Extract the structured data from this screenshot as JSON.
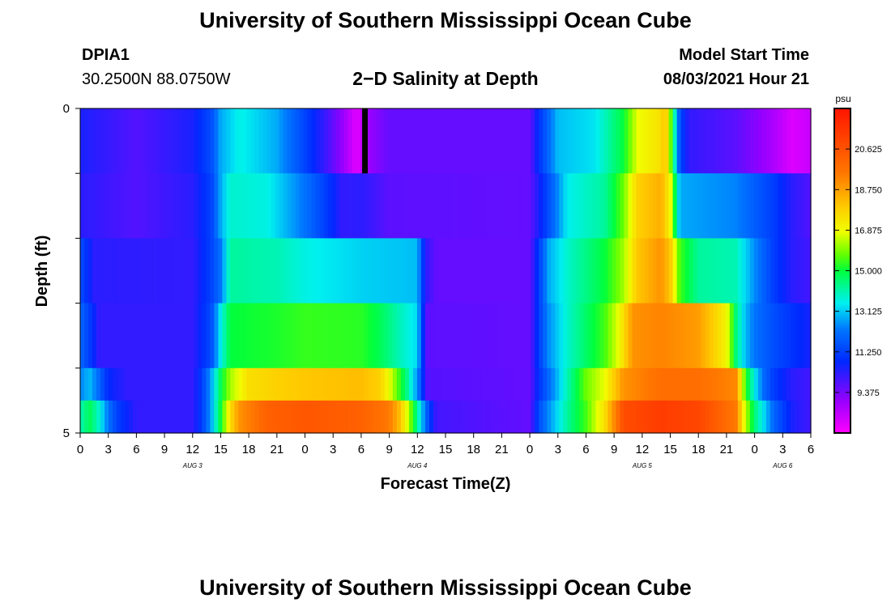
{
  "header": {
    "title": "University of Southern Mississippi Ocean Cube",
    "station_id": "DPIA1",
    "station_coords": "30.2500N  88.0750W",
    "subtitle": "2−D Salinity at Depth",
    "model_start_label": "Model Start Time",
    "model_start_value": "08/03/2021 Hour 21"
  },
  "footer": {
    "title": "University of Southern Mississippi Ocean Cube"
  },
  "chart_data": {
    "type": "heatmap",
    "xlabel": "Forecast Time(Z)",
    "ylabel": "Depth (ft)",
    "ylim": [
      0,
      5
    ],
    "y_tick_labels": [
      "0",
      "5"
    ],
    "x_tick_labels": [
      "0",
      "3",
      "6",
      "9",
      "12",
      "15",
      "18",
      "21",
      "0",
      "3",
      "6",
      "9",
      "12",
      "15",
      "18",
      "21",
      "0",
      "3",
      "6",
      "9",
      "12",
      "15",
      "18",
      "21",
      "0",
      "3",
      "6"
    ],
    "x_hours_range": [
      0,
      78
    ],
    "date_labels": [
      {
        "text": "AUG 3",
        "hour": 12
      },
      {
        "text": "AUG 4",
        "hour": 36
      },
      {
        "text": "AUG 5",
        "hour": 60
      },
      {
        "text": "AUG 6",
        "hour": 75
      }
    ],
    "colorbar": {
      "unit": "psu",
      "min": 7.5,
      "max": 22.5,
      "tick_labels": [
        "20.625",
        "18.750",
        "16.875",
        "15.000",
        "13.125",
        "11.250",
        "9.375"
      ],
      "tick_values": [
        20.625,
        18.75,
        16.875,
        15.0,
        13.125,
        11.25,
        9.375
      ]
    },
    "depth_layers": [
      0.5,
      1.5,
      2.5,
      3.5,
      4.5,
      5.0
    ],
    "missing_marker": {
      "hour_start": 30.1,
      "hour_end": 30.7,
      "layer": 0
    },
    "layers": [
      {
        "depth": 0.5,
        "keyframes": [
          [
            0,
            10.5
          ],
          [
            6,
            9.8
          ],
          [
            12,
            10.5
          ],
          [
            14,
            11.5
          ],
          [
            15,
            12.8
          ],
          [
            17,
            13.6
          ],
          [
            21,
            12.8
          ],
          [
            24,
            11.3
          ],
          [
            26,
            10.2
          ],
          [
            28,
            9.0
          ],
          [
            29.5,
            7.9
          ],
          [
            31,
            9.0
          ],
          [
            33,
            9.6
          ],
          [
            48,
            9.6
          ],
          [
            49,
            11.0
          ],
          [
            51,
            13.0
          ],
          [
            55,
            13.4
          ],
          [
            58,
            15.0
          ],
          [
            59.5,
            16.8
          ],
          [
            62,
            17.5
          ],
          [
            62.5,
            18.2
          ],
          [
            63,
            16.0
          ],
          [
            63.5,
            13.8
          ],
          [
            64,
            11.5
          ],
          [
            65,
            10.2
          ],
          [
            70,
            9.7
          ],
          [
            74,
            8.7
          ],
          [
            76,
            8.0
          ],
          [
            78,
            8.3
          ]
        ]
      },
      {
        "depth": 1.5,
        "keyframes": [
          [
            0,
            10.3
          ],
          [
            6,
            9.8
          ],
          [
            12,
            10.3
          ],
          [
            14,
            11.3
          ],
          [
            15,
            12.8
          ],
          [
            16,
            13.8
          ],
          [
            20,
            13.6
          ],
          [
            24,
            12.2
          ],
          [
            26,
            11.3
          ],
          [
            28,
            10.2
          ],
          [
            30,
            10.3
          ],
          [
            33,
            9.7
          ],
          [
            48,
            9.6
          ],
          [
            50,
            11.5
          ],
          [
            52,
            13.5
          ],
          [
            56,
            14.2
          ],
          [
            58,
            15.8
          ],
          [
            59.5,
            17.8
          ],
          [
            62,
            18.5
          ],
          [
            63,
            17.0
          ],
          [
            64,
            12.8
          ],
          [
            70,
            12.4
          ],
          [
            74,
            11.2
          ],
          [
            76,
            10.3
          ],
          [
            78,
            9.8
          ]
        ]
      },
      {
        "depth": 2.5,
        "keyframes": [
          [
            0,
            11.5
          ],
          [
            1.5,
            10.3
          ],
          [
            12,
            10.2
          ],
          [
            14,
            11.3
          ],
          [
            15,
            12.2
          ],
          [
            16,
            14.2
          ],
          [
            21,
            14.0
          ],
          [
            24,
            13.6
          ],
          [
            30,
            13.2
          ],
          [
            36,
            13.0
          ],
          [
            36.5,
            11.3
          ],
          [
            37,
            10.2
          ],
          [
            38,
            9.6
          ],
          [
            48,
            9.6
          ],
          [
            49,
            11.2
          ],
          [
            50,
            12.8
          ],
          [
            52,
            13.8
          ],
          [
            56,
            15.0
          ],
          [
            58,
            16.2
          ],
          [
            59.5,
            18.0
          ],
          [
            62,
            19.0
          ],
          [
            63,
            18.0
          ],
          [
            64,
            15.5
          ],
          [
            66,
            14.2
          ],
          [
            70,
            14.0
          ],
          [
            72,
            12.5
          ],
          [
            74,
            11.2
          ],
          [
            76,
            10.3
          ],
          [
            78,
            10.0
          ]
        ]
      },
      {
        "depth": 3.5,
        "keyframes": [
          [
            0,
            12.0
          ],
          [
            1,
            11.2
          ],
          [
            2,
            10.2
          ],
          [
            12,
            10.2
          ],
          [
            14,
            11.5
          ],
          [
            15,
            13.5
          ],
          [
            16,
            15.0
          ],
          [
            21,
            15.2
          ],
          [
            24,
            15.4
          ],
          [
            30,
            15.3
          ],
          [
            32,
            14.8
          ],
          [
            34,
            14.0
          ],
          [
            36,
            13.3
          ],
          [
            36.5,
            11.2
          ],
          [
            37,
            9.7
          ],
          [
            48,
            9.6
          ],
          [
            49,
            11.2
          ],
          [
            50,
            12.5
          ],
          [
            52,
            13.8
          ],
          [
            56,
            15.5
          ],
          [
            57.5,
            16.8
          ],
          [
            59,
            19.0
          ],
          [
            62,
            19.3
          ],
          [
            66,
            18.8
          ],
          [
            69,
            17.0
          ],
          [
            70,
            14.5
          ],
          [
            71,
            13.0
          ],
          [
            72,
            12.2
          ],
          [
            74,
            11.5
          ],
          [
            76,
            11.0
          ],
          [
            78,
            10.5
          ]
        ]
      },
      {
        "depth": 4.5,
        "keyframes": [
          [
            0,
            12.4
          ],
          [
            1,
            13.0
          ],
          [
            2,
            12.0
          ],
          [
            3,
            10.8
          ],
          [
            5,
            10.2
          ],
          [
            12,
            10.2
          ],
          [
            13,
            11.2
          ],
          [
            14,
            12.8
          ],
          [
            15,
            14.8
          ],
          [
            16,
            16.2
          ],
          [
            18,
            17.5
          ],
          [
            21,
            17.8
          ],
          [
            24,
            18.0
          ],
          [
            30,
            18.2
          ],
          [
            32,
            17.8
          ],
          [
            33,
            16.8
          ],
          [
            34,
            15.5
          ],
          [
            35,
            14.2
          ],
          [
            36,
            12.5
          ],
          [
            36.5,
            11.2
          ],
          [
            37,
            9.8
          ],
          [
            48,
            9.6
          ],
          [
            49,
            11.0
          ],
          [
            50,
            12.0
          ],
          [
            52,
            14.0
          ],
          [
            54,
            15.8
          ],
          [
            56,
            16.8
          ],
          [
            58,
            19.0
          ],
          [
            62,
            19.8
          ],
          [
            66,
            19.8
          ],
          [
            70,
            19.2
          ],
          [
            71,
            15.5
          ],
          [
            72,
            13.5
          ],
          [
            73,
            12.0
          ],
          [
            74,
            11.2
          ],
          [
            76,
            10.3
          ],
          [
            78,
            10.0
          ]
        ]
      },
      {
        "depth": 5.0,
        "keyframes": [
          [
            0,
            14.0
          ],
          [
            1,
            14.8
          ],
          [
            2,
            13.8
          ],
          [
            3,
            12.2
          ],
          [
            4,
            11.2
          ],
          [
            6,
            10.2
          ],
          [
            12,
            10.2
          ],
          [
            13,
            11.2
          ],
          [
            14,
            12.8
          ],
          [
            15,
            15.0
          ],
          [
            16,
            17.5
          ],
          [
            17,
            19.0
          ],
          [
            20,
            20.2
          ],
          [
            24,
            20.5
          ],
          [
            30,
            20.2
          ],
          [
            33,
            19.5
          ],
          [
            34,
            18.3
          ],
          [
            35,
            16.5
          ],
          [
            36,
            14.2
          ],
          [
            37,
            11.8
          ],
          [
            38,
            10.0
          ],
          [
            48,
            9.6
          ],
          [
            49,
            11.5
          ],
          [
            50,
            12.5
          ],
          [
            52,
            14.2
          ],
          [
            54,
            15.5
          ],
          [
            56,
            17.5
          ],
          [
            58,
            20.8
          ],
          [
            62,
            21.3
          ],
          [
            66,
            21.0
          ],
          [
            70,
            19.5
          ],
          [
            71,
            16.5
          ],
          [
            72,
            14.5
          ],
          [
            73,
            13.3
          ],
          [
            74,
            12.0
          ],
          [
            76,
            10.5
          ],
          [
            78,
            10.0
          ]
        ]
      }
    ]
  }
}
